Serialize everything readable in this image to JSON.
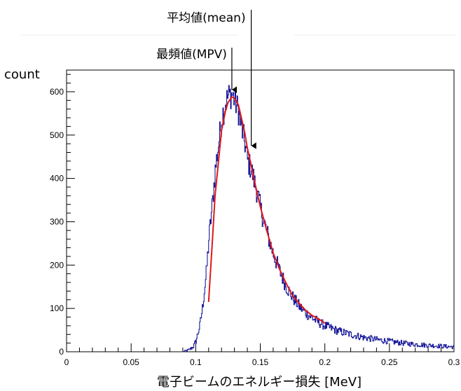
{
  "chart_data": {
    "type": "line",
    "title": "",
    "xlabel": "電子ビームのエネルギー損失 [MeV]",
    "ylabel": "count",
    "xlim": [
      0,
      0.3
    ],
    "ylim": [
      0,
      650
    ],
    "x_ticks": [
      "0",
      "0.05",
      "0.1",
      "0.15",
      "0.2",
      "0.25",
      "0.3"
    ],
    "y_ticks": [
      "0",
      "100",
      "200",
      "300",
      "400",
      "500",
      "600"
    ],
    "grid": false,
    "legend": "none",
    "series": [
      {
        "kind": "histogram",
        "color": "#1a1a9a",
        "x": [
          0.09,
          0.095,
          0.098,
          0.1,
          0.103,
          0.105,
          0.108,
          0.11,
          0.113,
          0.115,
          0.118,
          0.12,
          0.123,
          0.125,
          0.128,
          0.13,
          0.133,
          0.135,
          0.138,
          0.14,
          0.143,
          0.145,
          0.148,
          0.15,
          0.155,
          0.16,
          0.165,
          0.17,
          0.175,
          0.18,
          0.185,
          0.19,
          0.195,
          0.2,
          0.21,
          0.22,
          0.23,
          0.24,
          0.25,
          0.26,
          0.27,
          0.28,
          0.29,
          0.3
        ],
        "y": [
          0,
          5,
          12,
          25,
          60,
          100,
          180,
          260,
          350,
          420,
          490,
          540,
          575,
          590,
          595,
          580,
          555,
          520,
          480,
          440,
          420,
          395,
          360,
          330,
          275,
          225,
          185,
          150,
          125,
          105,
          90,
          78,
          68,
          60,
          48,
          40,
          33,
          28,
          24,
          20,
          17,
          15,
          13,
          11
        ]
      },
      {
        "kind": "fit",
        "color": "#e01818",
        "x": [
          0.11,
          0.113,
          0.115,
          0.118,
          0.12,
          0.123,
          0.125,
          0.128,
          0.13,
          0.133,
          0.135,
          0.138,
          0.14,
          0.143,
          0.145,
          0.15,
          0.155,
          0.16,
          0.165,
          0.17,
          0.175,
          0.18,
          0.185,
          0.19,
          0.195,
          0.2
        ],
        "y": [
          115,
          260,
          360,
          450,
          510,
          555,
          575,
          588,
          585,
          570,
          545,
          505,
          470,
          430,
          400,
          335,
          280,
          228,
          190,
          158,
          130,
          112,
          96,
          84,
          76,
          66
        ]
      }
    ],
    "annotations": [
      {
        "text": "平均値(mean)",
        "x": 0.143
      },
      {
        "text": "最頻値(MPV)",
        "x": 0.128
      }
    ]
  }
}
